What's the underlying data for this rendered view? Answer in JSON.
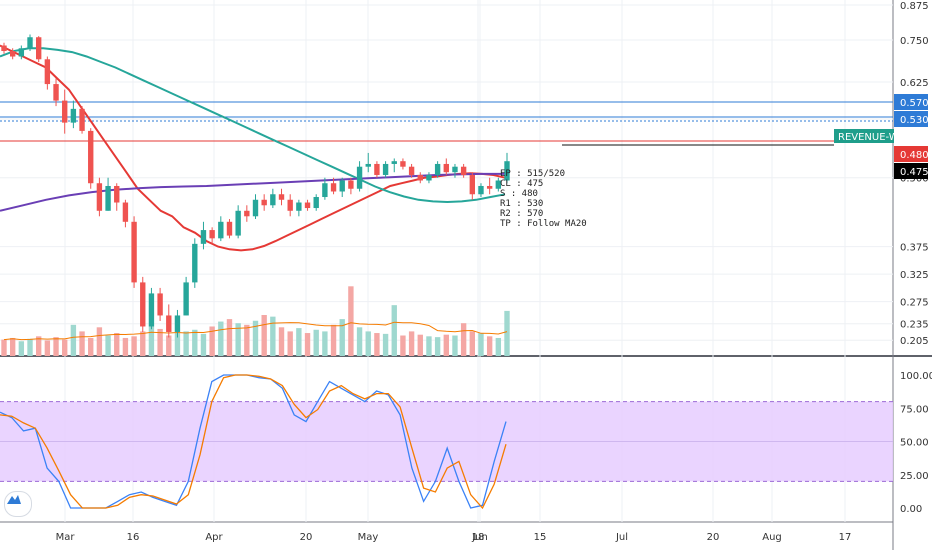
{
  "chart_data": [
    {
      "type": "candlestick",
      "panel": "price",
      "x_tick_labels": [
        "Mar",
        "16",
        "Apr",
        "20",
        "May",
        "18",
        "Jun",
        "15",
        "Jul",
        "20",
        "Aug",
        "17"
      ],
      "y_tick_labels": [
        "0.875",
        "0.750",
        "0.625",
        "0.530",
        "0.500",
        "0.375",
        "0.325",
        "0.275",
        "0.235",
        "0.205"
      ],
      "ylim": [
        0.18,
        0.88
      ],
      "price_tags": [
        {
          "label": "0.570",
          "value": 0.57,
          "color": "#2e7bd6"
        },
        {
          "label": "0.530",
          "value": 0.53,
          "color": "#2e7bd6"
        },
        {
          "label": "0.480",
          "value": 0.48,
          "color": "#e53935"
        },
        {
          "label": "0.475",
          "value": 0.475,
          "color": "#000000"
        }
      ],
      "horizontal_lines": [
        {
          "value": 0.57,
          "color": "#2e7bd6",
          "style": "solid"
        },
        {
          "value": 0.535,
          "color": "#2e7bd6",
          "style": "solid"
        },
        {
          "value": 0.53,
          "color": "#2e7bd6",
          "style": "dotted"
        },
        {
          "value": 0.48,
          "color": "#e53935",
          "style": "solid"
        }
      ],
      "symbol_label": "REVENUE-WA",
      "annotation_lines": [
        "EP : 515/520",
        "CL : 475",
        "S : 480",
        "R1 : 530",
        "R2 : 570",
        "TP : Follow MA20"
      ],
      "ohlc": [
        [
          0.74,
          0.745,
          0.725,
          0.73
        ],
        [
          0.73,
          0.735,
          0.715,
          0.72
        ],
        [
          0.72,
          0.74,
          0.715,
          0.735
        ],
        [
          0.735,
          0.76,
          0.73,
          0.755
        ],
        [
          0.755,
          0.757,
          0.71,
          0.715
        ],
        [
          0.715,
          0.72,
          0.66,
          0.67
        ],
        [
          0.67,
          0.68,
          0.63,
          0.64
        ],
        [
          0.64,
          0.66,
          0.58,
          0.6
        ],
        [
          0.6,
          0.64,
          0.59,
          0.625
        ],
        [
          0.625,
          0.63,
          0.58,
          0.585
        ],
        [
          0.585,
          0.59,
          0.48,
          0.49
        ],
        [
          0.49,
          0.5,
          0.43,
          0.44
        ],
        [
          0.44,
          0.5,
          0.44,
          0.485
        ],
        [
          0.485,
          0.49,
          0.44,
          0.455
        ],
        [
          0.455,
          0.46,
          0.41,
          0.42
        ],
        [
          0.42,
          0.43,
          0.3,
          0.31
        ],
        [
          0.31,
          0.32,
          0.22,
          0.23
        ],
        [
          0.23,
          0.3,
          0.225,
          0.29
        ],
        [
          0.29,
          0.3,
          0.24,
          0.25
        ],
        [
          0.25,
          0.27,
          0.21,
          0.22
        ],
        [
          0.22,
          0.26,
          0.21,
          0.25
        ],
        [
          0.25,
          0.32,
          0.25,
          0.31
        ],
        [
          0.31,
          0.39,
          0.3,
          0.38
        ],
        [
          0.38,
          0.42,
          0.37,
          0.405
        ],
        [
          0.405,
          0.41,
          0.38,
          0.39
        ],
        [
          0.39,
          0.43,
          0.385,
          0.42
        ],
        [
          0.42,
          0.425,
          0.39,
          0.395
        ],
        [
          0.395,
          0.45,
          0.39,
          0.44
        ],
        [
          0.44,
          0.45,
          0.42,
          0.43
        ],
        [
          0.43,
          0.47,
          0.425,
          0.46
        ],
        [
          0.46,
          0.47,
          0.44,
          0.45
        ],
        [
          0.45,
          0.48,
          0.445,
          0.47
        ],
        [
          0.47,
          0.48,
          0.45,
          0.46
        ],
        [
          0.46,
          0.47,
          0.43,
          0.44
        ],
        [
          0.44,
          0.46,
          0.43,
          0.455
        ],
        [
          0.455,
          0.46,
          0.44,
          0.445
        ],
        [
          0.445,
          0.47,
          0.44,
          0.465
        ],
        [
          0.465,
          0.5,
          0.46,
          0.49
        ],
        [
          0.49,
          0.5,
          0.47,
          0.475
        ],
        [
          0.475,
          0.5,
          0.465,
          0.495
        ],
        [
          0.495,
          0.5,
          0.47,
          0.48
        ],
        [
          0.48,
          0.53,
          0.475,
          0.52
        ],
        [
          0.52,
          0.545,
          0.51,
          0.525
        ],
        [
          0.525,
          0.53,
          0.5,
          0.505
        ],
        [
          0.505,
          0.53,
          0.5,
          0.525
        ],
        [
          0.525,
          0.535,
          0.51,
          0.53
        ],
        [
          0.53,
          0.535,
          0.515,
          0.52
        ],
        [
          0.52,
          0.525,
          0.5,
          0.505
        ],
        [
          0.505,
          0.51,
          0.49,
          0.495
        ],
        [
          0.495,
          0.51,
          0.49,
          0.505
        ],
        [
          0.505,
          0.53,
          0.5,
          0.525
        ],
        [
          0.525,
          0.535,
          0.505,
          0.51
        ],
        [
          0.51,
          0.525,
          0.5,
          0.52
        ],
        [
          0.52,
          0.525,
          0.5,
          0.505
        ],
        [
          0.505,
          0.51,
          0.46,
          0.47
        ],
        [
          0.47,
          0.49,
          0.465,
          0.485
        ],
        [
          0.485,
          0.5,
          0.47,
          0.48
        ],
        [
          0.48,
          0.5,
          0.475,
          0.495
        ],
        [
          0.495,
          0.545,
          0.49,
          0.53
        ]
      ],
      "volume": [
        0.2,
        0.22,
        0.18,
        0.21,
        0.24,
        0.19,
        0.23,
        0.2,
        0.38,
        0.3,
        0.22,
        0.35,
        0.25,
        0.28,
        0.22,
        0.24,
        0.3,
        0.36,
        0.33,
        0.25,
        0.28,
        0.3,
        0.32,
        0.27,
        0.36,
        0.42,
        0.45,
        0.4,
        0.38,
        0.43,
        0.5,
        0.48,
        0.35,
        0.3,
        0.34,
        0.28,
        0.32,
        0.3,
        0.38,
        0.45,
        0.85,
        0.35,
        0.3,
        0.28,
        0.27,
        0.62,
        0.25,
        0.3,
        0.26,
        0.24,
        0.23,
        0.26,
        0.25,
        0.4,
        0.3,
        0.28,
        0.24,
        0.22,
        0.55
      ],
      "series": [
        {
          "name": "",
          "color": "#e53935",
          "values": [
            0.74,
            0.73,
            0.72,
            0.71,
            0.7,
            0.68,
            0.66,
            0.63,
            0.6,
            0.57,
            0.54,
            0.51,
            0.48,
            0.46,
            0.44,
            0.43,
            0.41,
            0.4,
            0.385,
            0.375,
            0.37,
            0.368,
            0.37,
            0.376,
            0.385,
            0.395,
            0.405,
            0.415,
            0.425,
            0.435,
            0.445,
            0.455,
            0.465,
            0.475,
            0.485,
            0.49,
            0.495,
            0.5,
            0.502,
            0.505,
            0.507,
            0.508,
            0.507,
            0.505,
            0.5
          ]
        },
        {
          "name": "",
          "color": "#26a69a",
          "values": [
            0.72,
            0.73,
            0.735,
            0.735,
            0.732,
            0.728,
            0.72,
            0.71,
            0.7,
            0.688,
            0.676,
            0.664,
            0.652,
            0.64,
            0.628,
            0.616,
            0.604,
            0.592,
            0.58,
            0.568,
            0.556,
            0.544,
            0.532,
            0.52,
            0.508,
            0.496,
            0.484,
            0.474,
            0.466,
            0.46,
            0.457,
            0.456,
            0.457,
            0.46,
            0.465,
            0.47
          ]
        },
        {
          "name": "",
          "color": "#6a3fb5",
          "values": [
            0.44,
            0.45,
            0.46,
            0.468,
            0.474,
            0.478,
            0.481,
            0.483,
            0.484,
            0.485,
            0.487,
            0.489,
            0.491,
            0.493,
            0.495,
            0.497,
            0.499,
            0.501,
            0.503,
            0.505,
            0.506,
            0.507,
            0.507
          ]
        }
      ]
    },
    {
      "type": "line",
      "panel": "stochastic",
      "ylim": [
        -10,
        110
      ],
      "y_tick_labels": [
        "100.00",
        "75.00",
        "50.00",
        "25.00",
        "0.00"
      ],
      "bands": {
        "upper": 80,
        "lower": 20,
        "fill": "#e6ccff"
      },
      "series": [
        {
          "name": "",
          "color": "#3b82f6",
          "values": [
            72,
            68,
            58,
            60,
            30,
            20,
            0,
            0,
            0,
            0,
            5,
            10,
            12,
            8,
            5,
            2,
            20,
            60,
            95,
            100,
            100,
            100,
            98,
            97,
            90,
            70,
            65,
            80,
            95,
            90,
            85,
            80,
            88,
            85,
            70,
            30,
            5,
            20,
            45,
            20,
            0,
            2,
            35,
            65
          ]
        },
        {
          "name": "",
          "color": "#f57c00",
          "values": [
            70,
            69,
            64,
            60,
            45,
            28,
            10,
            0,
            0,
            0,
            2,
            8,
            10,
            9,
            6,
            3,
            10,
            40,
            80,
            98,
            100,
            100,
            99,
            97,
            92,
            78,
            68,
            74,
            88,
            92,
            86,
            82,
            86,
            86,
            76,
            45,
            15,
            12,
            30,
            35,
            10,
            0,
            18,
            48
          ]
        }
      ]
    }
  ]
}
